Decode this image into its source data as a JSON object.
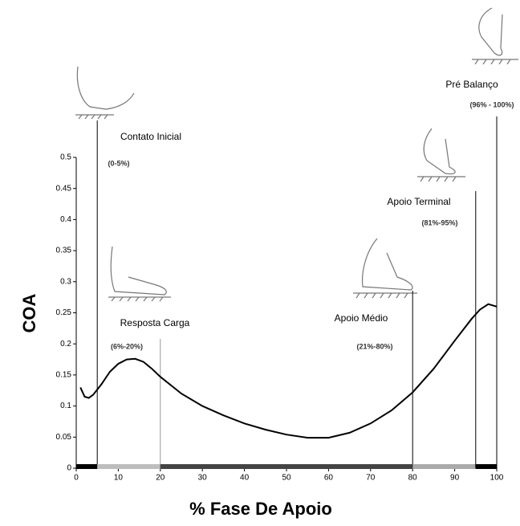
{
  "chart_data": {
    "type": "line",
    "xlabel": "% Fase De Apoio",
    "ylabel": "COA",
    "x": [
      1,
      2,
      3,
      4,
      6,
      8,
      10,
      12,
      14,
      16,
      18,
      20,
      25,
      30,
      35,
      40,
      45,
      50,
      55,
      60,
      65,
      70,
      75,
      80,
      85,
      90,
      94,
      96,
      98,
      100
    ],
    "values": [
      0.13,
      0.115,
      0.113,
      0.118,
      0.135,
      0.155,
      0.168,
      0.175,
      0.176,
      0.171,
      0.16,
      0.147,
      0.12,
      0.1,
      0.085,
      0.072,
      0.062,
      0.054,
      0.049,
      0.049,
      0.057,
      0.072,
      0.093,
      0.122,
      0.16,
      0.205,
      0.24,
      0.255,
      0.264,
      0.26
    ],
    "color": "#000000",
    "xlim": [
      0,
      100
    ],
    "ylim": [
      0,
      0.5
    ],
    "xticks": [
      0,
      10,
      20,
      30,
      40,
      50,
      60,
      70,
      80,
      90,
      100
    ],
    "yticks": [
      0,
      0.05,
      0.1,
      0.15,
      0.2,
      0.25,
      0.3,
      0.35,
      0.4,
      0.45,
      0.5
    ],
    "phases": [
      {
        "name": "Contato Inicial",
        "range": "(0-5%)",
        "start": 0,
        "end": 5,
        "color": "#000000"
      },
      {
        "name": "Resposta Carga",
        "range": "(6%-20%)",
        "start": 5,
        "end": 20,
        "color": "#bdbdbd"
      },
      {
        "name": "Apoio Médio",
        "range": "(21%-80%)",
        "start": 20,
        "end": 80,
        "color": "#444444"
      },
      {
        "name": "Apoio Terminal",
        "range": "(81%-95%)",
        "start": 80,
        "end": 95,
        "color": "#aaaaaa"
      },
      {
        "name": "Pré Balanço",
        "range": "(96% - 100%)",
        "start": 95,
        "end": 100,
        "color": "#000000"
      }
    ]
  }
}
